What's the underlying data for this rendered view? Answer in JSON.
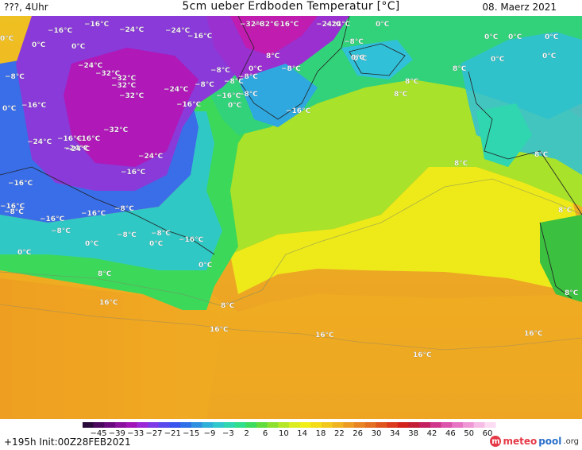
{
  "header": {
    "location_time": "???, 4Uhr",
    "title": "5cm ueber Erdboden Temperatur [°C]",
    "date": "08. Maerz 2021"
  },
  "map_labels": [
    {
      "text": "0°C"
    },
    {
      "text": "−16°C"
    },
    {
      "text": "−16°C"
    },
    {
      "text": "−24°C"
    },
    {
      "text": "−24°C"
    },
    {
      "text": "−16°C"
    },
    {
      "text": "0°C"
    },
    {
      "text": "0°C"
    },
    {
      "text": "−8°C"
    },
    {
      "text": "0°C"
    },
    {
      "text": "−32°C"
    },
    {
      "text": "−16°C"
    },
    {
      "text": "−24°C"
    },
    {
      "text": "−24°C"
    },
    {
      "text": "−8°C"
    },
    {
      "text": "−32°C"
    },
    {
      "text": "−24°C"
    },
    {
      "text": "−24°C"
    },
    {
      "text": "−8°C"
    },
    {
      "text": "−16°C"
    },
    {
      "text": "0°C"
    },
    {
      "text": "−8°C"
    },
    {
      "text": "0°C"
    },
    {
      "text": "−8°C"
    },
    {
      "text": "8°C"
    },
    {
      "text": "−32°C"
    },
    {
      "text": "−32°C"
    },
    {
      "text": "−16°C"
    },
    {
      "text": "−24°C"
    },
    {
      "text": "−8°C"
    },
    {
      "text": "−8°C"
    },
    {
      "text": "8°C"
    },
    {
      "text": "0°C"
    },
    {
      "text": "0°C"
    },
    {
      "text": "−16°C"
    },
    {
      "text": "−8°C"
    },
    {
      "text": "0°C"
    },
    {
      "text": "−32°C"
    },
    {
      "text": "−32°C"
    },
    {
      "text": "−16°C"
    },
    {
      "text": "−32°C"
    },
    {
      "text": "−16°C"
    },
    {
      "text": "0°C"
    },
    {
      "text": "0°C"
    },
    {
      "text": "−24°C"
    },
    {
      "text": "8°C"
    },
    {
      "text": "−24°C"
    },
    {
      "text": "0°C"
    },
    {
      "text": "0°C"
    },
    {
      "text": "−16°C"
    },
    {
      "text": "−24°C"
    },
    {
      "text": "0°C"
    },
    {
      "text": "8°C"
    },
    {
      "text": "−16°C"
    },
    {
      "text": "−16°C"
    },
    {
      "text": "8°C"
    },
    {
      "text": "−8°C"
    },
    {
      "text": "−16°C"
    },
    {
      "text": "8°C"
    },
    {
      "text": "−16°C"
    },
    {
      "text": "−8°C"
    },
    {
      "text": "−16°C"
    },
    {
      "text": "8°C"
    },
    {
      "text": "−8°C"
    },
    {
      "text": "−8°C"
    },
    {
      "text": "−8°C"
    },
    {
      "text": "−16°C"
    },
    {
      "text": "0°C"
    },
    {
      "text": "0°C"
    },
    {
      "text": "0°C"
    },
    {
      "text": "0°C"
    },
    {
      "text": "8°C"
    },
    {
      "text": "16°C"
    },
    {
      "text": "8°C"
    },
    {
      "text": "16°C"
    },
    {
      "text": "16°C"
    },
    {
      "text": "16°C"
    },
    {
      "text": "8°C"
    },
    {
      "text": "16°C"
    }
  ],
  "colorbar": {
    "ticks": [
      "−45",
      "−39",
      "−33",
      "−27",
      "−21",
      "−15",
      "−9",
      "−3",
      "2",
      "6",
      "10",
      "14",
      "18",
      "22",
      "26",
      "30",
      "34",
      "38",
      "42",
      "46",
      "50",
      "60"
    ],
    "colors": [
      "#2a0a3a",
      "#4b0a5e",
      "#6a0a7e",
      "#8a109e",
      "#a014b8",
      "#9b28d6",
      "#7d3ae6",
      "#5a4aee",
      "#3a55ee",
      "#2f70e8",
      "#2f8fe0",
      "#2fb0d8",
      "#30c8cc",
      "#2fd6b0",
      "#2fdf8c",
      "#3cdc5e",
      "#62dc3c",
      "#8ee030",
      "#b6e628",
      "#dcec22",
      "#f2ee1a",
      "#f4dc18",
      "#f2c81e",
      "#f0b422",
      "#ec9c24",
      "#e88424",
      "#e46e22",
      "#e0541e",
      "#dc3a1c",
      "#d4221c",
      "#c41e34",
      "#c42060",
      "#d0388c",
      "#dc54ac",
      "#e874c4",
      "#f098d6",
      "#f6bce6",
      "#fcdcf2"
    ]
  },
  "footer": {
    "run_info": "+195h  Init:00Z28FEB2021",
    "logo_a": "meteo",
    "logo_b": "pool",
    "logo_c": ".org"
  }
}
